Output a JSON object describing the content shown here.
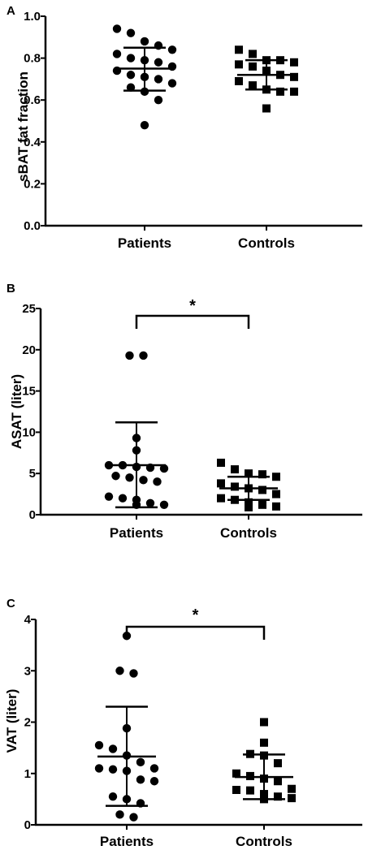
{
  "chart_data": [
    {
      "type": "scatter",
      "panel": "A",
      "ylabel": "sBAT fat fraction",
      "ylim": [
        0,
        1.0
      ],
      "yticks": [
        0.0,
        0.2,
        0.4,
        0.6,
        0.8,
        1.0
      ],
      "ytick_labels": [
        "0.0",
        "0.2",
        "0.4",
        "0.6",
        "0.8",
        "1.0"
      ],
      "categories": [
        "Patients",
        "Controls"
      ],
      "significance": "",
      "series": [
        {
          "category": "Patients",
          "marker": "circle",
          "values": [
            0.94,
            0.92,
            0.88,
            0.86,
            0.84,
            0.82,
            0.8,
            0.79,
            0.78,
            0.76,
            0.74,
            0.72,
            0.71,
            0.7,
            0.68,
            0.66,
            0.64,
            0.6,
            0.48
          ],
          "mean": 0.75,
          "sd_low": 0.645,
          "sd_high": 0.85
        },
        {
          "category": "Controls",
          "marker": "square",
          "values": [
            0.84,
            0.82,
            0.79,
            0.79,
            0.78,
            0.77,
            0.76,
            0.74,
            0.72,
            0.71,
            0.69,
            0.67,
            0.65,
            0.64,
            0.64,
            0.56
          ],
          "mean": 0.72,
          "sd_low": 0.65,
          "sd_high": 0.79
        }
      ]
    },
    {
      "type": "scatter",
      "panel": "B",
      "ylabel": "ASAT (liter)",
      "ylim": [
        0,
        25
      ],
      "yticks": [
        0,
        5,
        10,
        15,
        20,
        25
      ],
      "ytick_labels": [
        "0",
        "5",
        "10",
        "15",
        "20",
        "25"
      ],
      "categories": [
        "Patients",
        "Controls"
      ],
      "significance": "*",
      "series": [
        {
          "category": "Patients",
          "marker": "circle",
          "values": [
            19.3,
            19.3,
            9.3,
            7.8,
            6.0,
            6.0,
            5.8,
            5.7,
            5.6,
            4.7,
            4.5,
            4.2,
            4.0,
            2.2,
            2.0,
            1.8,
            1.4,
            1.2,
            1.2
          ],
          "mean": 6.0,
          "sd_low": 0.9,
          "sd_high": 11.2
        },
        {
          "category": "Controls",
          "marker": "square",
          "values": [
            6.3,
            5.5,
            5.0,
            4.9,
            4.6,
            3.8,
            3.4,
            3.2,
            3.0,
            2.5,
            2.0,
            1.8,
            1.5,
            1.2,
            1.0,
            0.9
          ],
          "mean": 3.2,
          "sd_low": 1.8,
          "sd_high": 4.6
        }
      ]
    },
    {
      "type": "scatter",
      "panel": "C",
      "ylabel": "VAT (liter)",
      "ylim": [
        0,
        4
      ],
      "yticks": [
        0,
        1,
        2,
        3,
        4
      ],
      "ytick_labels": [
        "0",
        "1",
        "2",
        "3",
        "4"
      ],
      "categories": [
        "Patients",
        "Controls"
      ],
      "significance": "*",
      "series": [
        {
          "category": "Patients",
          "marker": "circle",
          "values": [
            3.68,
            3.0,
            2.95,
            1.88,
            1.55,
            1.48,
            1.35,
            1.22,
            1.1,
            1.1,
            1.08,
            1.05,
            0.88,
            0.85,
            0.55,
            0.5,
            0.42,
            0.2,
            0.15
          ],
          "mean": 1.33,
          "sd_low": 0.37,
          "sd_high": 2.3
        },
        {
          "category": "Controls",
          "marker": "square",
          "values": [
            2.0,
            1.6,
            1.38,
            1.35,
            1.2,
            1.0,
            0.95,
            0.9,
            0.85,
            0.7,
            0.68,
            0.67,
            0.6,
            0.55,
            0.52,
            0.5
          ],
          "mean": 0.93,
          "sd_low": 0.5,
          "sd_high": 1.37
        }
      ]
    }
  ]
}
